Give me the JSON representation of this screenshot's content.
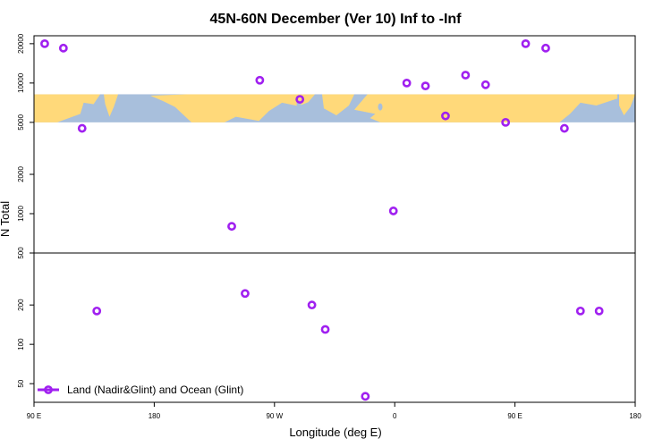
{
  "chart_data": {
    "type": "scatter",
    "title": "45N-60N December (Ver 10)   Inf to -Inf",
    "xlabel": "Longitude (deg E)",
    "ylabel": "N Total",
    "x_ticks": [
      {
        "value": 90,
        "label": "90 E"
      },
      {
        "value": 180,
        "label": "180"
      },
      {
        "value": 270,
        "label": "90 W"
      },
      {
        "value": 360,
        "label": "0"
      },
      {
        "value": 450,
        "label": "90 E"
      },
      {
        "value": 540,
        "label": "180"
      }
    ],
    "y_ticks": [
      50,
      100,
      200,
      500,
      1000,
      2000,
      5000,
      10000,
      20000
    ],
    "xlim": [
      90,
      540
    ],
    "ylim_log": [
      36,
      23000
    ],
    "reference_line": 500,
    "map_band": {
      "y_bottom": 5000,
      "y_top": 8200
    },
    "colors": {
      "series": "#a020f0",
      "land": "#ffd97a",
      "ocean": "#a8bfdc",
      "axis": "#000000"
    },
    "legend": {
      "position": "bottom-left"
    },
    "series": [
      {
        "name": "Land (Nadir&Glint) and Ocean (Glint)",
        "x": [
          98,
          112,
          126,
          137,
          238,
          248,
          259,
          289,
          298,
          308,
          338,
          359,
          369,
          383,
          398,
          413,
          428,
          443,
          458,
          473,
          487,
          499,
          513
        ],
        "y": [
          20000,
          18500,
          4500,
          180,
          800,
          245,
          10500,
          7500,
          200,
          130,
          40,
          1050,
          10000,
          9500,
          5600,
          11500,
          9700,
          5000,
          20000,
          18500,
          4500,
          180,
          180
        ]
      }
    ]
  }
}
